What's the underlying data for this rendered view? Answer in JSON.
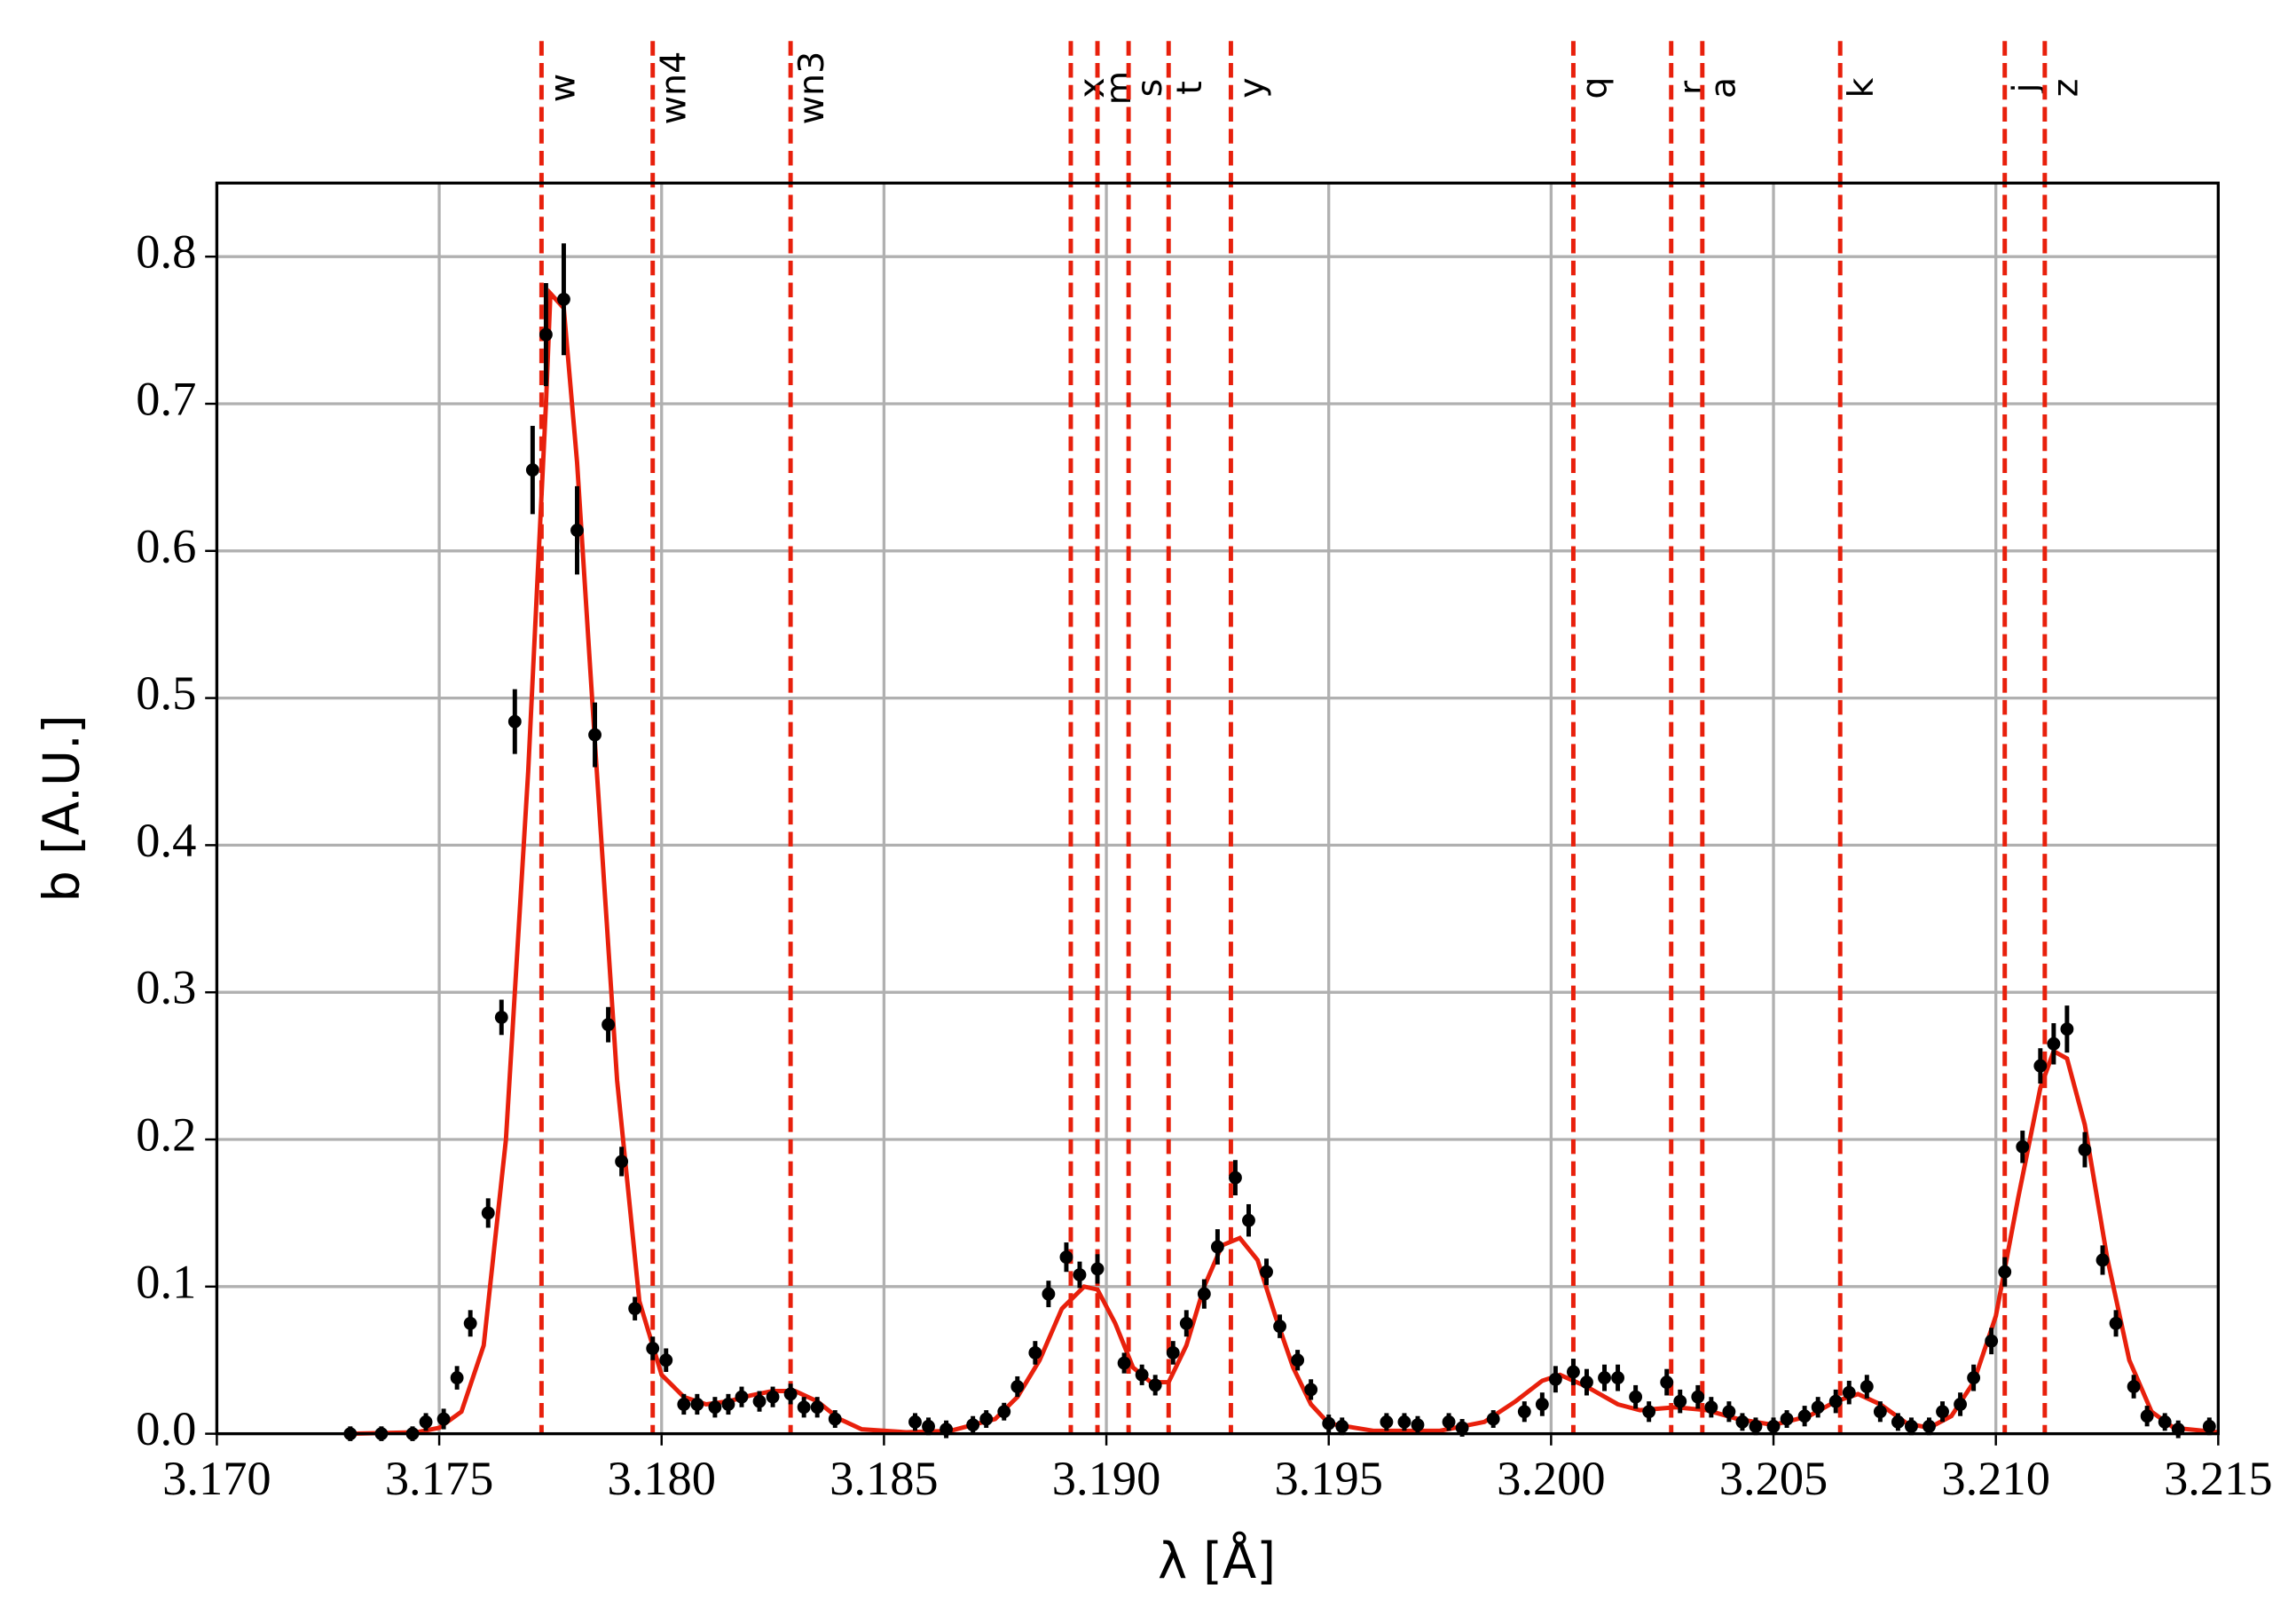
{
  "chart_data": {
    "type": "scatter",
    "xlabel": "λ [Å]",
    "ylabel": "b [A.U.]",
    "xlim": [
      3.17,
      3.215
    ],
    "ylim": [
      0,
      0.85
    ],
    "xticks": [
      {
        "value": 3.17,
        "label": "3.170"
      },
      3.175,
      {
        "value": 3.18,
        "label": "3.180"
      },
      3.185,
      {
        "value": 3.19,
        "label": "3.190"
      },
      3.195,
      {
        "value": 3.2,
        "label": "3.200"
      },
      3.205,
      {
        "value": 3.21,
        "label": "3.210"
      },
      3.215
    ],
    "yticks": [
      {
        "value": 0,
        "label": "0.0"
      },
      0.1,
      0.2,
      0.3,
      0.4,
      0.5,
      0.6,
      0.7,
      0.8
    ],
    "grid": true,
    "series": [
      {
        "type": "errorbar",
        "color": "#000000",
        "x": [
          3.173,
          3.1737,
          3.1744,
          3.1747,
          3.1751,
          3.1754,
          3.1757,
          3.1761,
          3.1764,
          3.1767,
          3.1771,
          3.1774,
          3.1778,
          3.1781,
          3.1785,
          3.1788,
          3.1791,
          3.1794,
          3.1798,
          3.1801,
          3.1805,
          3.1808,
          3.1812,
          3.1815,
          3.1818,
          3.1822,
          3.1825,
          3.1829,
          3.1832,
          3.1835,
          3.1839,
          3.1857,
          3.186,
          3.1864,
          3.187,
          3.1873,
          3.1877,
          3.188,
          3.1884,
          3.1887,
          3.1891,
          3.1894,
          3.1898,
          3.1904,
          3.1908,
          3.1911,
          3.1915,
          3.1918,
          3.1922,
          3.1925,
          3.1929,
          3.1932,
          3.1936,
          3.1939,
          3.1943,
          3.1946,
          3.195,
          3.1953,
          3.1963,
          3.1967,
          3.197,
          3.1977,
          3.198,
          3.1987,
          3.1994,
          3.1998,
          3.2001,
          3.2005,
          3.2008,
          3.2012,
          3.2015,
          3.2019,
          3.2022,
          3.2026,
          3.2029,
          3.2033,
          3.2036,
          3.204,
          3.2043,
          3.2046,
          3.205,
          3.2053,
          3.2057,
          3.206,
          3.2064,
          3.2067,
          3.2071,
          3.2074,
          3.2078,
          3.2081,
          3.2085,
          3.2088,
          3.2092,
          3.2095,
          3.2099,
          3.2102,
          3.2106,
          3.211,
          3.2113,
          3.2116,
          3.212,
          3.2124,
          3.2127,
          3.2131,
          3.2134,
          3.2138,
          3.2141,
          3.2148
        ],
        "values": [
          0.0,
          0.0,
          0.0,
          0.008,
          0.01,
          0.038,
          0.075,
          0.15,
          0.283,
          0.484,
          0.655,
          0.747,
          0.771,
          0.614,
          0.475,
          0.278,
          0.185,
          0.085,
          0.058,
          0.05,
          0.02,
          0.02,
          0.018,
          0.02,
          0.025,
          0.022,
          0.025,
          0.027,
          0.018,
          0.018,
          0.01,
          0.008,
          0.005,
          0.003,
          0.006,
          0.01,
          0.015,
          0.032,
          0.055,
          0.095,
          0.12,
          0.108,
          0.112,
          0.048,
          0.04,
          0.033,
          0.055,
          0.075,
          0.095,
          0.127,
          0.174,
          0.145,
          0.11,
          0.073,
          0.05,
          0.03,
          0.007,
          0.005,
          0.008,
          0.008,
          0.006,
          0.008,
          0.004,
          0.01,
          0.015,
          0.02,
          0.037,
          0.042,
          0.035,
          0.038,
          0.038,
          0.025,
          0.015,
          0.035,
          0.022,
          0.025,
          0.018,
          0.015,
          0.008,
          0.005,
          0.005,
          0.01,
          0.012,
          0.018,
          0.022,
          0.028,
          0.032,
          0.015,
          0.008,
          0.005,
          0.005,
          0.015,
          0.02,
          0.038,
          0.063,
          0.11,
          0.195,
          0.25,
          0.265,
          0.275,
          0.193,
          0.118,
          0.075,
          0.032,
          0.012,
          0.008,
          0.003,
          0.005
        ],
        "errors": [
          0.005,
          0.005,
          0.005,
          0.006,
          0.007,
          0.008,
          0.009,
          0.01,
          0.012,
          0.022,
          0.03,
          0.035,
          0.038,
          0.03,
          0.022,
          0.012,
          0.01,
          0.008,
          0.008,
          0.008,
          0.007,
          0.007,
          0.007,
          0.007,
          0.007,
          0.007,
          0.007,
          0.007,
          0.007,
          0.007,
          0.006,
          0.006,
          0.006,
          0.006,
          0.006,
          0.006,
          0.006,
          0.007,
          0.008,
          0.009,
          0.01,
          0.009,
          0.01,
          0.007,
          0.007,
          0.007,
          0.008,
          0.009,
          0.01,
          0.012,
          0.012,
          0.011,
          0.009,
          0.008,
          0.007,
          0.007,
          0.006,
          0.006,
          0.006,
          0.006,
          0.006,
          0.006,
          0.006,
          0.006,
          0.007,
          0.008,
          0.009,
          0.009,
          0.009,
          0.009,
          0.009,
          0.008,
          0.007,
          0.009,
          0.008,
          0.008,
          0.007,
          0.007,
          0.006,
          0.006,
          0.006,
          0.006,
          0.007,
          0.007,
          0.008,
          0.008,
          0.008,
          0.007,
          0.006,
          0.006,
          0.006,
          0.007,
          0.008,
          0.009,
          0.009,
          0.01,
          0.011,
          0.012,
          0.014,
          0.016,
          0.012,
          0.01,
          0.009,
          0.008,
          0.007,
          0.006,
          0.006,
          0.006
        ]
      },
      {
        "type": "line",
        "color": "#e8200c",
        "x": [
          3.173,
          3.1745,
          3.175,
          3.1755,
          3.176,
          3.1765,
          3.177,
          3.1774,
          3.1775,
          3.1778,
          3.1781,
          3.1785,
          3.179,
          3.1795,
          3.18,
          3.1805,
          3.181,
          3.1815,
          3.182,
          3.1825,
          3.183,
          3.1835,
          3.184,
          3.1845,
          3.1855,
          3.1865,
          3.1875,
          3.188,
          3.1885,
          3.189,
          3.1895,
          3.1898,
          3.1902,
          3.1906,
          3.191,
          3.1914,
          3.1918,
          3.1922,
          3.1926,
          3.193,
          3.1934,
          3.1938,
          3.1942,
          3.1946,
          3.195,
          3.196,
          3.1975,
          3.1985,
          3.1992,
          3.1998,
          3.2002,
          3.2008,
          3.2015,
          3.202,
          3.2028,
          3.2035,
          3.2042,
          3.205,
          3.2058,
          3.2064,
          3.2069,
          3.2074,
          3.208,
          3.2085,
          3.209,
          3.2095,
          3.21,
          3.2105,
          3.211,
          3.2113,
          3.2116,
          3.212,
          3.2125,
          3.213,
          3.2135,
          3.214,
          3.215
        ],
        "values": [
          0,
          0.001,
          0.004,
          0.015,
          0.06,
          0.2,
          0.45,
          0.7,
          0.775,
          0.765,
          0.66,
          0.47,
          0.24,
          0.09,
          0.04,
          0.025,
          0.02,
          0.022,
          0.026,
          0.029,
          0.029,
          0.022,
          0.01,
          0.003,
          0.001,
          0.002,
          0.01,
          0.025,
          0.05,
          0.085,
          0.1,
          0.098,
          0.075,
          0.045,
          0.035,
          0.035,
          0.06,
          0.1,
          0.128,
          0.133,
          0.118,
          0.08,
          0.045,
          0.02,
          0.007,
          0.002,
          0.002,
          0.008,
          0.022,
          0.036,
          0.04,
          0.032,
          0.02,
          0.016,
          0.018,
          0.016,
          0.01,
          0.006,
          0.012,
          0.022,
          0.027,
          0.02,
          0.007,
          0.004,
          0.012,
          0.035,
          0.08,
          0.16,
          0.235,
          0.26,
          0.255,
          0.21,
          0.12,
          0.05,
          0.015,
          0.004,
          0.001
        ]
      }
    ],
    "reference_lines": {
      "color": "#e8200c",
      "style": "dashed",
      "x": [
        3.1773,
        3.1798,
        3.1829,
        3.1892,
        3.1898,
        3.1905,
        3.1914,
        3.1928,
        3.2005,
        3.2027,
        3.2034,
        3.2065,
        3.2102,
        3.2111
      ],
      "labels": [
        "w",
        "wn4",
        "wn3",
        "x",
        "m",
        "s",
        "t",
        "y",
        "q",
        "r",
        "a",
        "k",
        "j",
        "z"
      ]
    }
  }
}
